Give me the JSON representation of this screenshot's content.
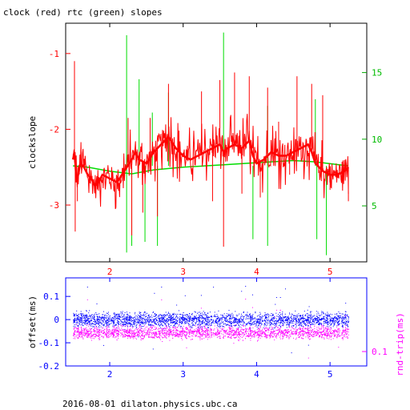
{
  "page": {
    "title": "clock (red) rtc (green) slopes",
    "footer": "2016-08-01 dilaton.physics.ubc.ca"
  },
  "colors": {
    "clock": "#ff0000",
    "rtc": "#00dd00",
    "offset": "#0000ff",
    "rndtrip": "#ff00ff",
    "axis": "#000000"
  },
  "chart_data": [
    {
      "type": "line",
      "title": "clock (red) rtc (green) slopes",
      "xlabel": "",
      "ylabel": "clockslope",
      "y2label": "",
      "xlim": [
        1.4,
        5.5
      ],
      "ylim": [
        -3.75,
        -0.6
      ],
      "y2lim": [
        0.8,
        18.7
      ],
      "xticks": [
        2,
        3,
        4,
        5
      ],
      "yticks": [
        -1,
        -2,
        -3
      ],
      "y2ticks": [
        5,
        10,
        15
      ],
      "series": [
        {
          "name": "clock",
          "color": "#ff0000",
          "axis": "left",
          "x": [
            1.5,
            1.52,
            1.55,
            1.6,
            1.65,
            1.7,
            1.75,
            1.8,
            1.85,
            1.9,
            2.0,
            2.1,
            2.2,
            2.3,
            2.35,
            2.4,
            2.5,
            2.6,
            2.7,
            2.8,
            2.9,
            3.0,
            3.1,
            3.2,
            3.3,
            3.4,
            3.5,
            3.55,
            3.6,
            3.7,
            3.8,
            3.9,
            3.95,
            4.0,
            4.1,
            4.2,
            4.3,
            4.4,
            4.5,
            4.6,
            4.7,
            4.75,
            4.8,
            4.9,
            5.0,
            5.1,
            5.2,
            5.25
          ],
          "y": [
            -2.4,
            -2.3,
            -2.7,
            -2.45,
            -2.5,
            -2.6,
            -2.65,
            -2.75,
            -2.7,
            -2.6,
            -2.65,
            -2.7,
            -2.55,
            -2.4,
            -2.3,
            -2.4,
            -2.45,
            -2.3,
            -2.2,
            -2.1,
            -2.25,
            -2.35,
            -2.4,
            -2.35,
            -2.3,
            -2.25,
            -2.2,
            -2.3,
            -2.25,
            -2.2,
            -2.25,
            -2.15,
            -2.35,
            -2.45,
            -2.4,
            -2.3,
            -2.35,
            -2.35,
            -2.3,
            -2.25,
            -2.2,
            -2.3,
            -2.45,
            -2.55,
            -2.6,
            -2.6,
            -2.55,
            -2.5
          ],
          "spikes": [
            [
              1.52,
              -1.1
            ],
            [
              1.53,
              -3.35
            ],
            [
              1.56,
              -2.95
            ],
            [
              2.25,
              -1.85
            ],
            [
              2.3,
              -3.4
            ],
            [
              2.45,
              -3.1
            ],
            [
              2.55,
              -1.85
            ],
            [
              2.65,
              -3.15
            ],
            [
              2.8,
              -1.4
            ],
            [
              3.25,
              -1.5
            ],
            [
              3.4,
              -2.95
            ],
            [
              3.5,
              -1.35
            ],
            [
              3.55,
              -3.55
            ],
            [
              3.7,
              -1.25
            ],
            [
              3.8,
              -2.85
            ],
            [
              3.9,
              -1.3
            ],
            [
              4.05,
              -2.9
            ],
            [
              4.15,
              -1.45
            ],
            [
              4.3,
              -1.9
            ],
            [
              4.45,
              -2.6
            ],
            [
              4.55,
              -1.3
            ],
            [
              4.75,
              -1.4
            ],
            [
              4.9,
              -1.55
            ],
            [
              5.0,
              -2.8
            ],
            [
              5.25,
              -2.95
            ]
          ]
        },
        {
          "name": "rtc",
          "color": "#00dd00",
          "axis": "right",
          "x": [
            1.5,
            1.7,
            2.0,
            2.3,
            2.6,
            3.0,
            3.3,
            3.6,
            3.9,
            4.2,
            4.5,
            4.8,
            5.1,
            5.25
          ],
          "y": [
            8.0,
            7.9,
            7.6,
            7.4,
            7.7,
            7.9,
            8.0,
            8.1,
            8.2,
            8.3,
            8.4,
            8.3,
            8.1,
            8.0
          ],
          "spikes": [
            [
              2.23,
              17.8
            ],
            [
              2.23,
              1.5
            ],
            [
              2.3,
              2.0
            ],
            [
              2.4,
              14.5
            ],
            [
              2.48,
              2.3
            ],
            [
              2.58,
              12.0
            ],
            [
              2.65,
              2.0
            ],
            [
              2.8,
              13.5
            ],
            [
              3.55,
              18.0
            ],
            [
              3.95,
              2.5
            ],
            [
              4.15,
              12.5
            ],
            [
              4.15,
              2.0
            ],
            [
              4.8,
              13.0
            ],
            [
              4.82,
              2.5
            ],
            [
              4.95,
              1.3
            ]
          ]
        }
      ]
    },
    {
      "type": "scatter",
      "xlabel": "",
      "ylabel": "offset(ms)",
      "y2label": "rnd-trip(ms)",
      "xlim": [
        1.4,
        5.5
      ],
      "ylim": [
        -0.2,
        0.18
      ],
      "xticks": [
        2,
        3,
        4,
        5
      ],
      "yticks": [
        0.1,
        0,
        -0.1,
        -0.2
      ],
      "y2ticks": [
        0.1
      ],
      "series": [
        {
          "name": "offset",
          "color": "#0000ff",
          "center": 0.0,
          "spread": 0.045
        },
        {
          "name": "rnd-trip",
          "color": "#ff00ff",
          "center": -0.055,
          "spread": 0.04
        }
      ]
    }
  ]
}
